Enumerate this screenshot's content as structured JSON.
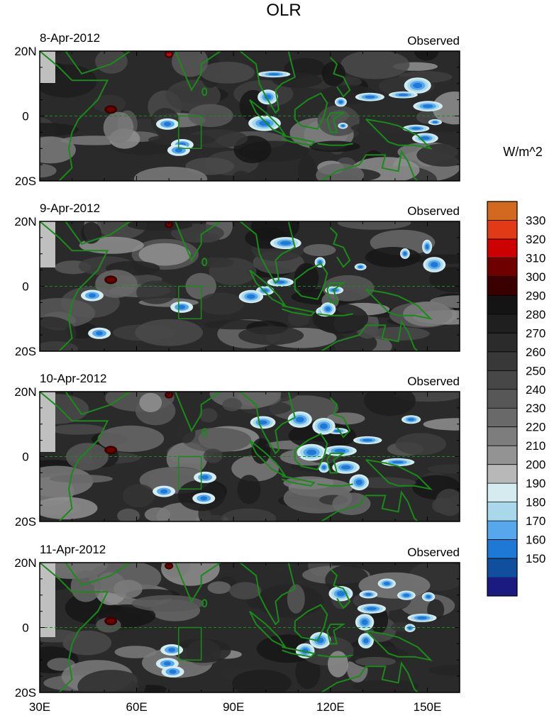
{
  "figure": {
    "title": "OLR",
    "units_label": "W/m^2"
  },
  "panels": [
    {
      "date": "8-Apr-2012",
      "label": "Observed"
    },
    {
      "date": "9-Apr-2012",
      "label": "Observed"
    },
    {
      "date": "10-Apr-2012",
      "label": "Observed"
    },
    {
      "date": "11-Apr-2012",
      "label": "Observed"
    }
  ],
  "axes": {
    "lon_range": [
      30,
      160
    ],
    "lat_range": [
      -20,
      20
    ],
    "x_ticks": [
      {
        "lon": 30,
        "label": "30E"
      },
      {
        "lon": 60,
        "label": "60E"
      },
      {
        "lon": 90,
        "label": "90E"
      },
      {
        "lon": 120,
        "label": "120E"
      },
      {
        "lon": 150,
        "label": "150E"
      }
    ],
    "y_ticks": [
      {
        "lat": 20,
        "label": "20N"
      },
      {
        "lat": 0,
        "label": "0"
      },
      {
        "lat": -20,
        "label": "20S"
      }
    ]
  },
  "colorbar": {
    "levels": [
      {
        "label": "330",
        "color": "#d2691e"
      },
      {
        "label": "320",
        "color": "#e03a16"
      },
      {
        "label": "310",
        "color": "#cc0000"
      },
      {
        "label": "300",
        "color": "#6e0000"
      },
      {
        "label": "290",
        "color": "#3a0000"
      },
      {
        "label": "280",
        "color": "#141414"
      },
      {
        "label": "270",
        "color": "#1f1f1f"
      },
      {
        "label": "260",
        "color": "#2b2b2b"
      },
      {
        "label": "250",
        "color": "#383838"
      },
      {
        "label": "240",
        "color": "#474747"
      },
      {
        "label": "230",
        "color": "#575757"
      },
      {
        "label": "220",
        "color": "#696969"
      },
      {
        "label": "210",
        "color": "#7d7d7d"
      },
      {
        "label": "200",
        "color": "#939393"
      },
      {
        "label": "190",
        "color": "#b8b8b8"
      },
      {
        "label": "180",
        "color": "#d4ecf0"
      },
      {
        "label": "170",
        "color": "#a8d8ea"
      },
      {
        "label": "160",
        "color": "#56a7ec"
      },
      {
        "label": "150",
        "color": "#1e78d6"
      }
    ],
    "extra_bottom_colors": [
      "#0f4f9e",
      "#1a1a80"
    ]
  },
  "colors": {
    "coast": "#1a8a1a",
    "gap": "#bfbfbf"
  }
}
